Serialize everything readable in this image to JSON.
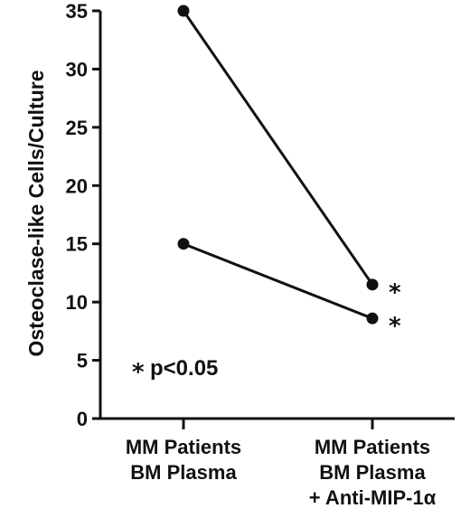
{
  "chart_data": {
    "type": "line",
    "ylabel": "Osteoclase-like Cells/Culture",
    "xlabel": "",
    "ylim": [
      0,
      35
    ],
    "yticks": [
      0,
      5,
      10,
      15,
      20,
      25,
      30,
      35
    ],
    "categories": [
      [
        "MM Patients",
        "BM Plasma"
      ],
      [
        "MM Patients",
        "BM Plasma",
        "+ Anti-MIP-1α"
      ]
    ],
    "series": [
      {
        "values": [
          35,
          11.5
        ]
      },
      {
        "values": [
          15,
          8.6
        ]
      }
    ],
    "point_markers": [
      {
        "series": 0,
        "point": 1,
        "text": "*"
      },
      {
        "series": 1,
        "point": 1,
        "text": "*"
      }
    ],
    "annotation": {
      "star": "*",
      "text": "p<0.05"
    },
    "grid": false,
    "legend": "none"
  }
}
